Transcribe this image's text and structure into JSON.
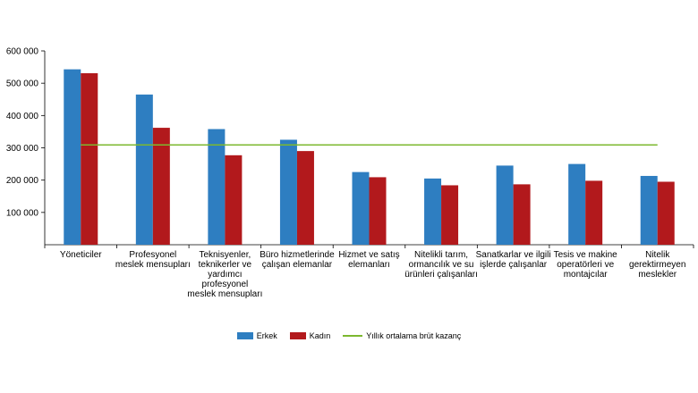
{
  "chart_data": {
    "type": "bar",
    "categories": [
      [
        "Yöneticiler"
      ],
      [
        "Profesyonel",
        "meslek mensupları"
      ],
      [
        "Teknisyenler,",
        "teknikerler ve",
        "yardımcı",
        "profesyonel",
        "meslek mensupları"
      ],
      [
        "Büro hizmetlerinde",
        "çalışan elemanlar"
      ],
      [
        "Hizmet ve satış",
        "elemanları"
      ],
      [
        "Nitelikli tarım,",
        "ormancılık ve su",
        "ürünleri çalışanları"
      ],
      [
        "Sanatkarlar ve ilgili",
        "işlerde çalışanlar"
      ],
      [
        "Tesis ve makine",
        "operatörleri ve",
        "montajcılar"
      ],
      [
        "Nitelik",
        "gerektirmeyen",
        "meslekler"
      ]
    ],
    "series": [
      {
        "name": "Erkek",
        "color": "#2e7ec1",
        "values": [
          543000,
          465000,
          358000,
          325000,
          225000,
          205000,
          245000,
          250000,
          213000
        ]
      },
      {
        "name": "Kadın",
        "color": "#b2191c",
        "values": [
          531000,
          362000,
          277000,
          290000,
          209000,
          184000,
          187000,
          198000,
          195000
        ]
      }
    ],
    "reference_line": {
      "name": "Yıllık ortalama brüt kazanç",
      "value": 309000,
      "color": "#7cb82f"
    },
    "y_ticks": [
      "100 000",
      "200 000",
      "300 000",
      "400 000",
      "500 000",
      "600 000"
    ],
    "ylim": [
      0,
      600000
    ],
    "grid": false,
    "legend_position": "bottom"
  }
}
